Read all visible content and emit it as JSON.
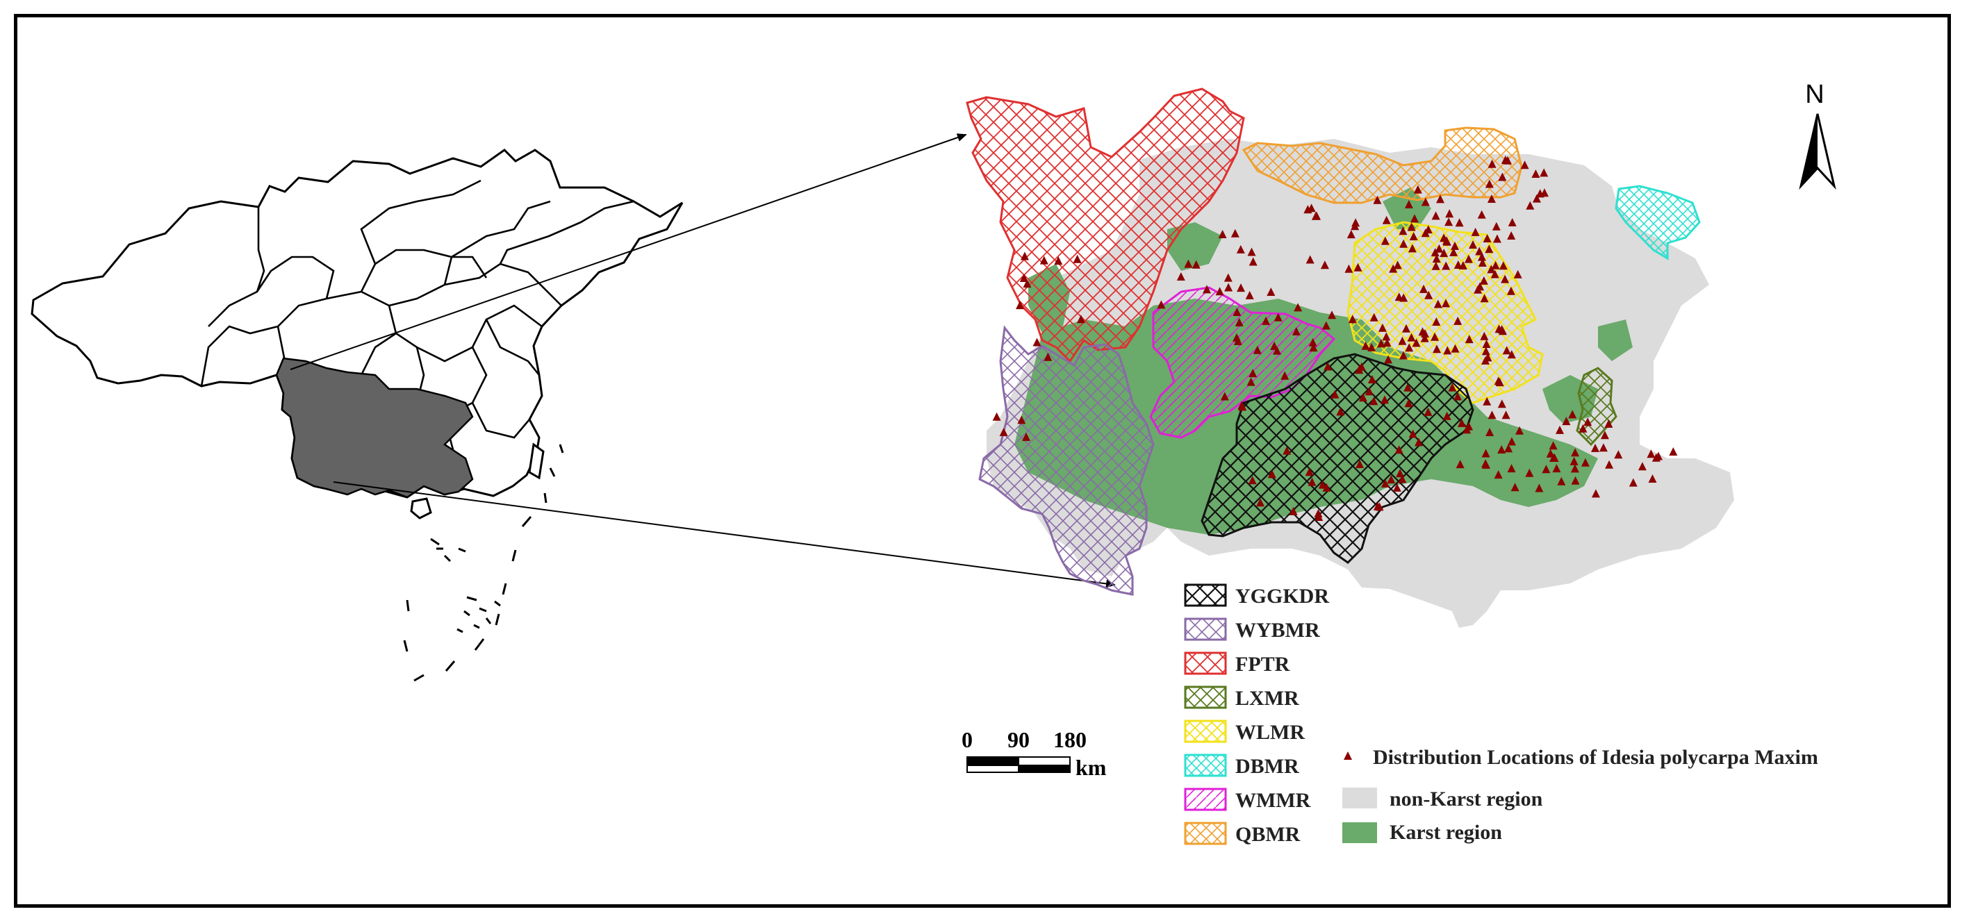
{
  "north_label": "N",
  "scale_bar": {
    "ticks": [
      "0",
      "90",
      "180"
    ],
    "unit": "km"
  },
  "zones": [
    {
      "code": "YGGKDR",
      "color": "#111111"
    },
    {
      "code": "WYBMR",
      "color": "#8a6aa8"
    },
    {
      "code": "FPTR",
      "color": "#e03030"
    },
    {
      "code": "LXMR",
      "color": "#5a7a20"
    },
    {
      "code": "WLMR",
      "color": "#f2e21a"
    },
    {
      "code": "DBMR",
      "color": "#2ee0d0"
    },
    {
      "code": "WMMR",
      "color": "#e020d8"
    },
    {
      "code": "QBMR",
      "color": "#f0a030"
    }
  ],
  "legend_other": {
    "distribution_label": "Distribution Locations of Idesia polycarpa Maxim",
    "distribution_color": "#8b0000",
    "nonkarst_label": "non-Karst region",
    "nonkarst_color": "#dcdcdc",
    "karst_label": "Karst region",
    "karst_color": "#6aaa6a"
  },
  "inset": {
    "highlight_color": "#636363"
  }
}
